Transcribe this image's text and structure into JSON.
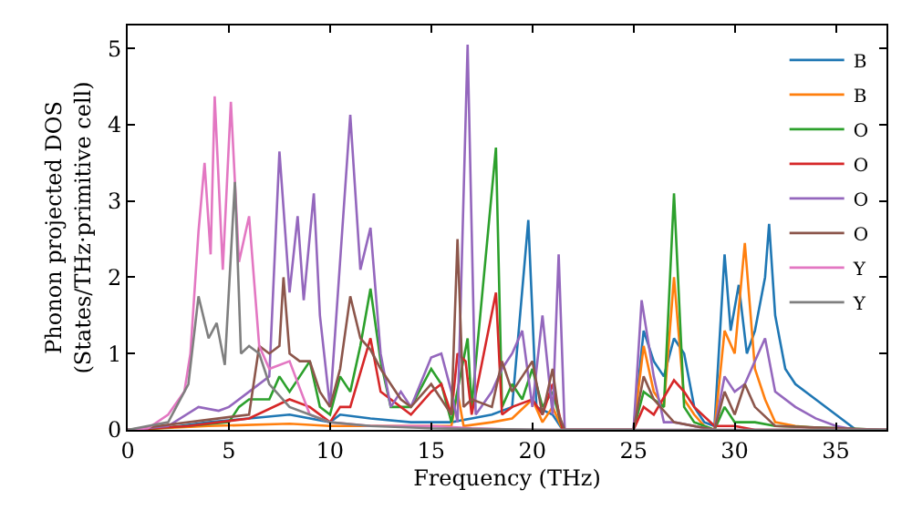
{
  "chart_data": {
    "type": "line",
    "xlabel": "Frequency (THz)",
    "ylabel": "Phonon projected DOS\n(States/THz·primitive cell)",
    "xlim": [
      0,
      37.5
    ],
    "ylim": [
      0,
      5.3
    ],
    "xticks": [
      0,
      5,
      10,
      15,
      20,
      25,
      30,
      35
    ],
    "yticks": [
      0,
      1,
      2,
      3,
      4,
      5
    ],
    "legend": "top right",
    "marker": "none",
    "line_style": "solid",
    "series": [
      {
        "name": "B",
        "color": "#1f77b4",
        "x": [
          0,
          2,
          4,
          6,
          8,
          10,
          10.5,
          12,
          14,
          16,
          17,
          18,
          19,
          19.8,
          20.2,
          21,
          21.5,
          22,
          25,
          25.5,
          26,
          26.5,
          27,
          27.5,
          28,
          28.5,
          29,
          29.5,
          29.8,
          30.2,
          30.6,
          31,
          31.5,
          31.7,
          32,
          32.5,
          33,
          34,
          35,
          36,
          37.5
        ],
        "values": [
          0,
          0.03,
          0.1,
          0.15,
          0.2,
          0.1,
          0.2,
          0.15,
          0.1,
          0.1,
          0.15,
          0.2,
          0.3,
          2.75,
          0.3,
          0.2,
          0,
          0,
          0,
          1.3,
          0.9,
          0.7,
          1.2,
          1.0,
          0.3,
          0.1,
          0.05,
          2.3,
          1.3,
          1.9,
          1.0,
          1.3,
          2.0,
          2.7,
          1.5,
          0.8,
          0.6,
          0.4,
          0.2,
          0,
          0
        ]
      },
      {
        "name": "B",
        "color": "#ff7f0e",
        "x": [
          0,
          4,
          8,
          10,
          14,
          16,
          16.3,
          16.6,
          18,
          19,
          20,
          20.5,
          21,
          21.5,
          25,
          25.5,
          26,
          26.5,
          27,
          27.5,
          28,
          28.5,
          29,
          29.5,
          30,
          30.5,
          31,
          31.5,
          32,
          33,
          35,
          37.5
        ],
        "values": [
          0,
          0.05,
          0.08,
          0.05,
          0.05,
          0.05,
          0.5,
          0.05,
          0.1,
          0.15,
          0.4,
          0.1,
          0.3,
          0,
          0,
          1.1,
          0.5,
          0.3,
          2.0,
          0.4,
          0.2,
          0.05,
          0,
          1.3,
          1.0,
          2.45,
          0.8,
          0.4,
          0.1,
          0.05,
          0,
          0
        ]
      },
      {
        "name": "O",
        "color": "#2ca02c",
        "x": [
          0,
          3,
          5,
          5.5,
          6,
          7,
          7.5,
          8,
          9,
          9.5,
          10,
          10.5,
          11,
          11.5,
          12,
          12.5,
          13,
          14,
          15,
          15.5,
          16,
          16.8,
          17,
          18.2,
          18.5,
          19,
          19.5,
          20,
          20.5,
          21,
          21.5,
          25,
          25.5,
          26,
          26.5,
          27,
          27.5,
          28,
          29,
          29.5,
          30,
          31,
          32,
          37.5
        ],
        "values": [
          0,
          0.05,
          0.1,
          0.3,
          0.4,
          0.4,
          0.7,
          0.5,
          0.9,
          0.3,
          0.2,
          0.7,
          0.5,
          1.1,
          1.85,
          0.9,
          0.3,
          0.3,
          0.8,
          0.6,
          0.1,
          1.2,
          0.3,
          3.7,
          0.3,
          0.6,
          0.4,
          0.8,
          0.3,
          0.5,
          0,
          0,
          0.5,
          0.4,
          0.3,
          3.1,
          0.3,
          0.1,
          0,
          0.3,
          0.1,
          0.1,
          0.05,
          0
        ]
      },
      {
        "name": "O",
        "color": "#d62728",
        "x": [
          0,
          3,
          6,
          8,
          9,
          10,
          10.5,
          11,
          12,
          12.5,
          14,
          15,
          15.5,
          16,
          16.3,
          16.7,
          17,
          18.2,
          18.5,
          19,
          20,
          20.5,
          21,
          21.5,
          25,
          25.5,
          26,
          27,
          27.5,
          28,
          29,
          30,
          31,
          37.5
        ],
        "values": [
          0,
          0.05,
          0.15,
          0.4,
          0.3,
          0.1,
          0.3,
          0.3,
          1.2,
          0.5,
          0.2,
          0.5,
          0.6,
          0.2,
          1.0,
          0.9,
          0.2,
          1.8,
          0.2,
          0.3,
          0.4,
          0.2,
          0.6,
          0,
          0,
          0.3,
          0.2,
          0.65,
          0.5,
          0.3,
          0.05,
          0.05,
          0,
          0
        ]
      },
      {
        "name": "O",
        "color": "#9467bd",
        "x": [
          0,
          2,
          3.5,
          4.5,
          5,
          6,
          7,
          7.5,
          8,
          8.4,
          8.7,
          9.2,
          9.5,
          10,
          11,
          11.5,
          12,
          12.5,
          13,
          13.5,
          14,
          15,
          15.5,
          16,
          16.3,
          16.8,
          17.2,
          18,
          18.5,
          19,
          19.5,
          20,
          20.5,
          21,
          21.3,
          21.6,
          25,
          25.4,
          26,
          26.5,
          27,
          29,
          29.5,
          30,
          30.5,
          31,
          31.5,
          32,
          33,
          34,
          35,
          36,
          37.5
        ],
        "values": [
          0,
          0.05,
          0.3,
          0.25,
          0.3,
          0.5,
          0.7,
          3.65,
          1.8,
          2.8,
          1.7,
          3.1,
          1.5,
          0.3,
          4.13,
          2.1,
          2.65,
          1.0,
          0.3,
          0.5,
          0.3,
          0.95,
          1.0,
          0.5,
          0.1,
          5.05,
          0.2,
          0.5,
          0.8,
          1.0,
          1.3,
          0.3,
          1.5,
          0.2,
          2.3,
          0,
          0,
          1.7,
          0.7,
          0.1,
          0.1,
          0,
          0.7,
          0.5,
          0.6,
          0.9,
          1.2,
          0.5,
          0.3,
          0.15,
          0.05,
          0,
          0
        ]
      },
      {
        "name": "O",
        "color": "#8c564b",
        "x": [
          0,
          3,
          6,
          6.5,
          7,
          7.5,
          7.7,
          8,
          8.5,
          9,
          9.5,
          10,
          10.5,
          11,
          11.5,
          12,
          12.5,
          13,
          13.5,
          14,
          15,
          15.5,
          16,
          16.3,
          16.6,
          17,
          18,
          18.5,
          19,
          20,
          20.5,
          21,
          21.3,
          21.6,
          25,
          25.5,
          26,
          27,
          29,
          29.5,
          30,
          30.5,
          31,
          32,
          37.5
        ],
        "values": [
          0,
          0.1,
          0.2,
          1.1,
          1.0,
          1.1,
          2.0,
          1.0,
          0.9,
          0.9,
          0.5,
          0.3,
          0.8,
          1.75,
          1.2,
          1.05,
          0.8,
          0.6,
          0.4,
          0.3,
          0.6,
          0.4,
          0.2,
          2.5,
          0.3,
          0.4,
          0.3,
          0.9,
          0.5,
          0.9,
          0.2,
          0.8,
          0.2,
          0,
          0,
          0.7,
          0.4,
          0.1,
          0,
          0.5,
          0.2,
          0.6,
          0.3,
          0.05,
          0
        ]
      },
      {
        "name": "Y",
        "color": "#e377c2",
        "x": [
          0,
          1,
          2,
          2.8,
          3.1,
          3.5,
          3.8,
          4.1,
          4.3,
          4.7,
          5.1,
          5.5,
          6,
          6.5,
          7,
          8,
          9,
          10,
          12,
          15,
          17,
          20,
          21.5,
          37.5
        ],
        "values": [
          0,
          0.02,
          0.2,
          0.5,
          1.0,
          2.6,
          3.5,
          2.3,
          4.37,
          2.1,
          4.3,
          2.2,
          2.8,
          1.1,
          0.8,
          0.9,
          0.2,
          0.1,
          0.05,
          0.05,
          0.02,
          0,
          0,
          0
        ]
      },
      {
        "name": "Y",
        "color": "#7f7f7f",
        "x": [
          0,
          2,
          3,
          3.5,
          4,
          4.4,
          4.8,
          5.3,
          5.6,
          6,
          6.5,
          7,
          8,
          9,
          10,
          12,
          15,
          21.5,
          37.5
        ],
        "values": [
          0,
          0.1,
          0.6,
          1.75,
          1.2,
          1.4,
          0.85,
          3.25,
          1.0,
          1.1,
          1.0,
          0.6,
          0.3,
          0.2,
          0.1,
          0.05,
          0.02,
          0,
          0
        ]
      }
    ]
  }
}
